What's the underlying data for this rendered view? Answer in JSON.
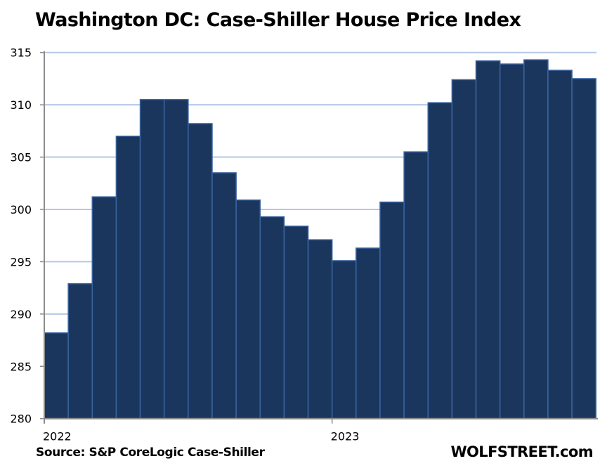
{
  "chart_data": {
    "type": "bar",
    "title": "Washington DC: Case-Shiller House Price Index",
    "source": "Source: S&P CoreLogic Case-Shiller",
    "brand": "WOLFSTREET.com",
    "xlabel": "",
    "ylabel": "",
    "ylim": [
      280,
      315
    ],
    "yticks": [
      "280",
      "285",
      "290",
      "295",
      "300",
      "305",
      "310",
      "315"
    ],
    "xtick_labels": [
      {
        "label": "2022",
        "index": 0
      },
      {
        "label": "2023",
        "index": 12
      }
    ],
    "grid": true,
    "colors": {
      "bar": "#1b365d",
      "bar_edge": "#3a64a0",
      "grid": "#b4c7e7",
      "axis": "#8c8c8c"
    },
    "values": [
      288.2,
      292.9,
      301.2,
      307.0,
      310.5,
      310.5,
      308.2,
      303.5,
      300.9,
      299.3,
      298.4,
      297.1,
      295.1,
      296.3,
      300.7,
      305.5,
      310.2,
      312.4,
      314.2,
      313.9,
      314.3,
      313.3,
      312.5
    ]
  }
}
